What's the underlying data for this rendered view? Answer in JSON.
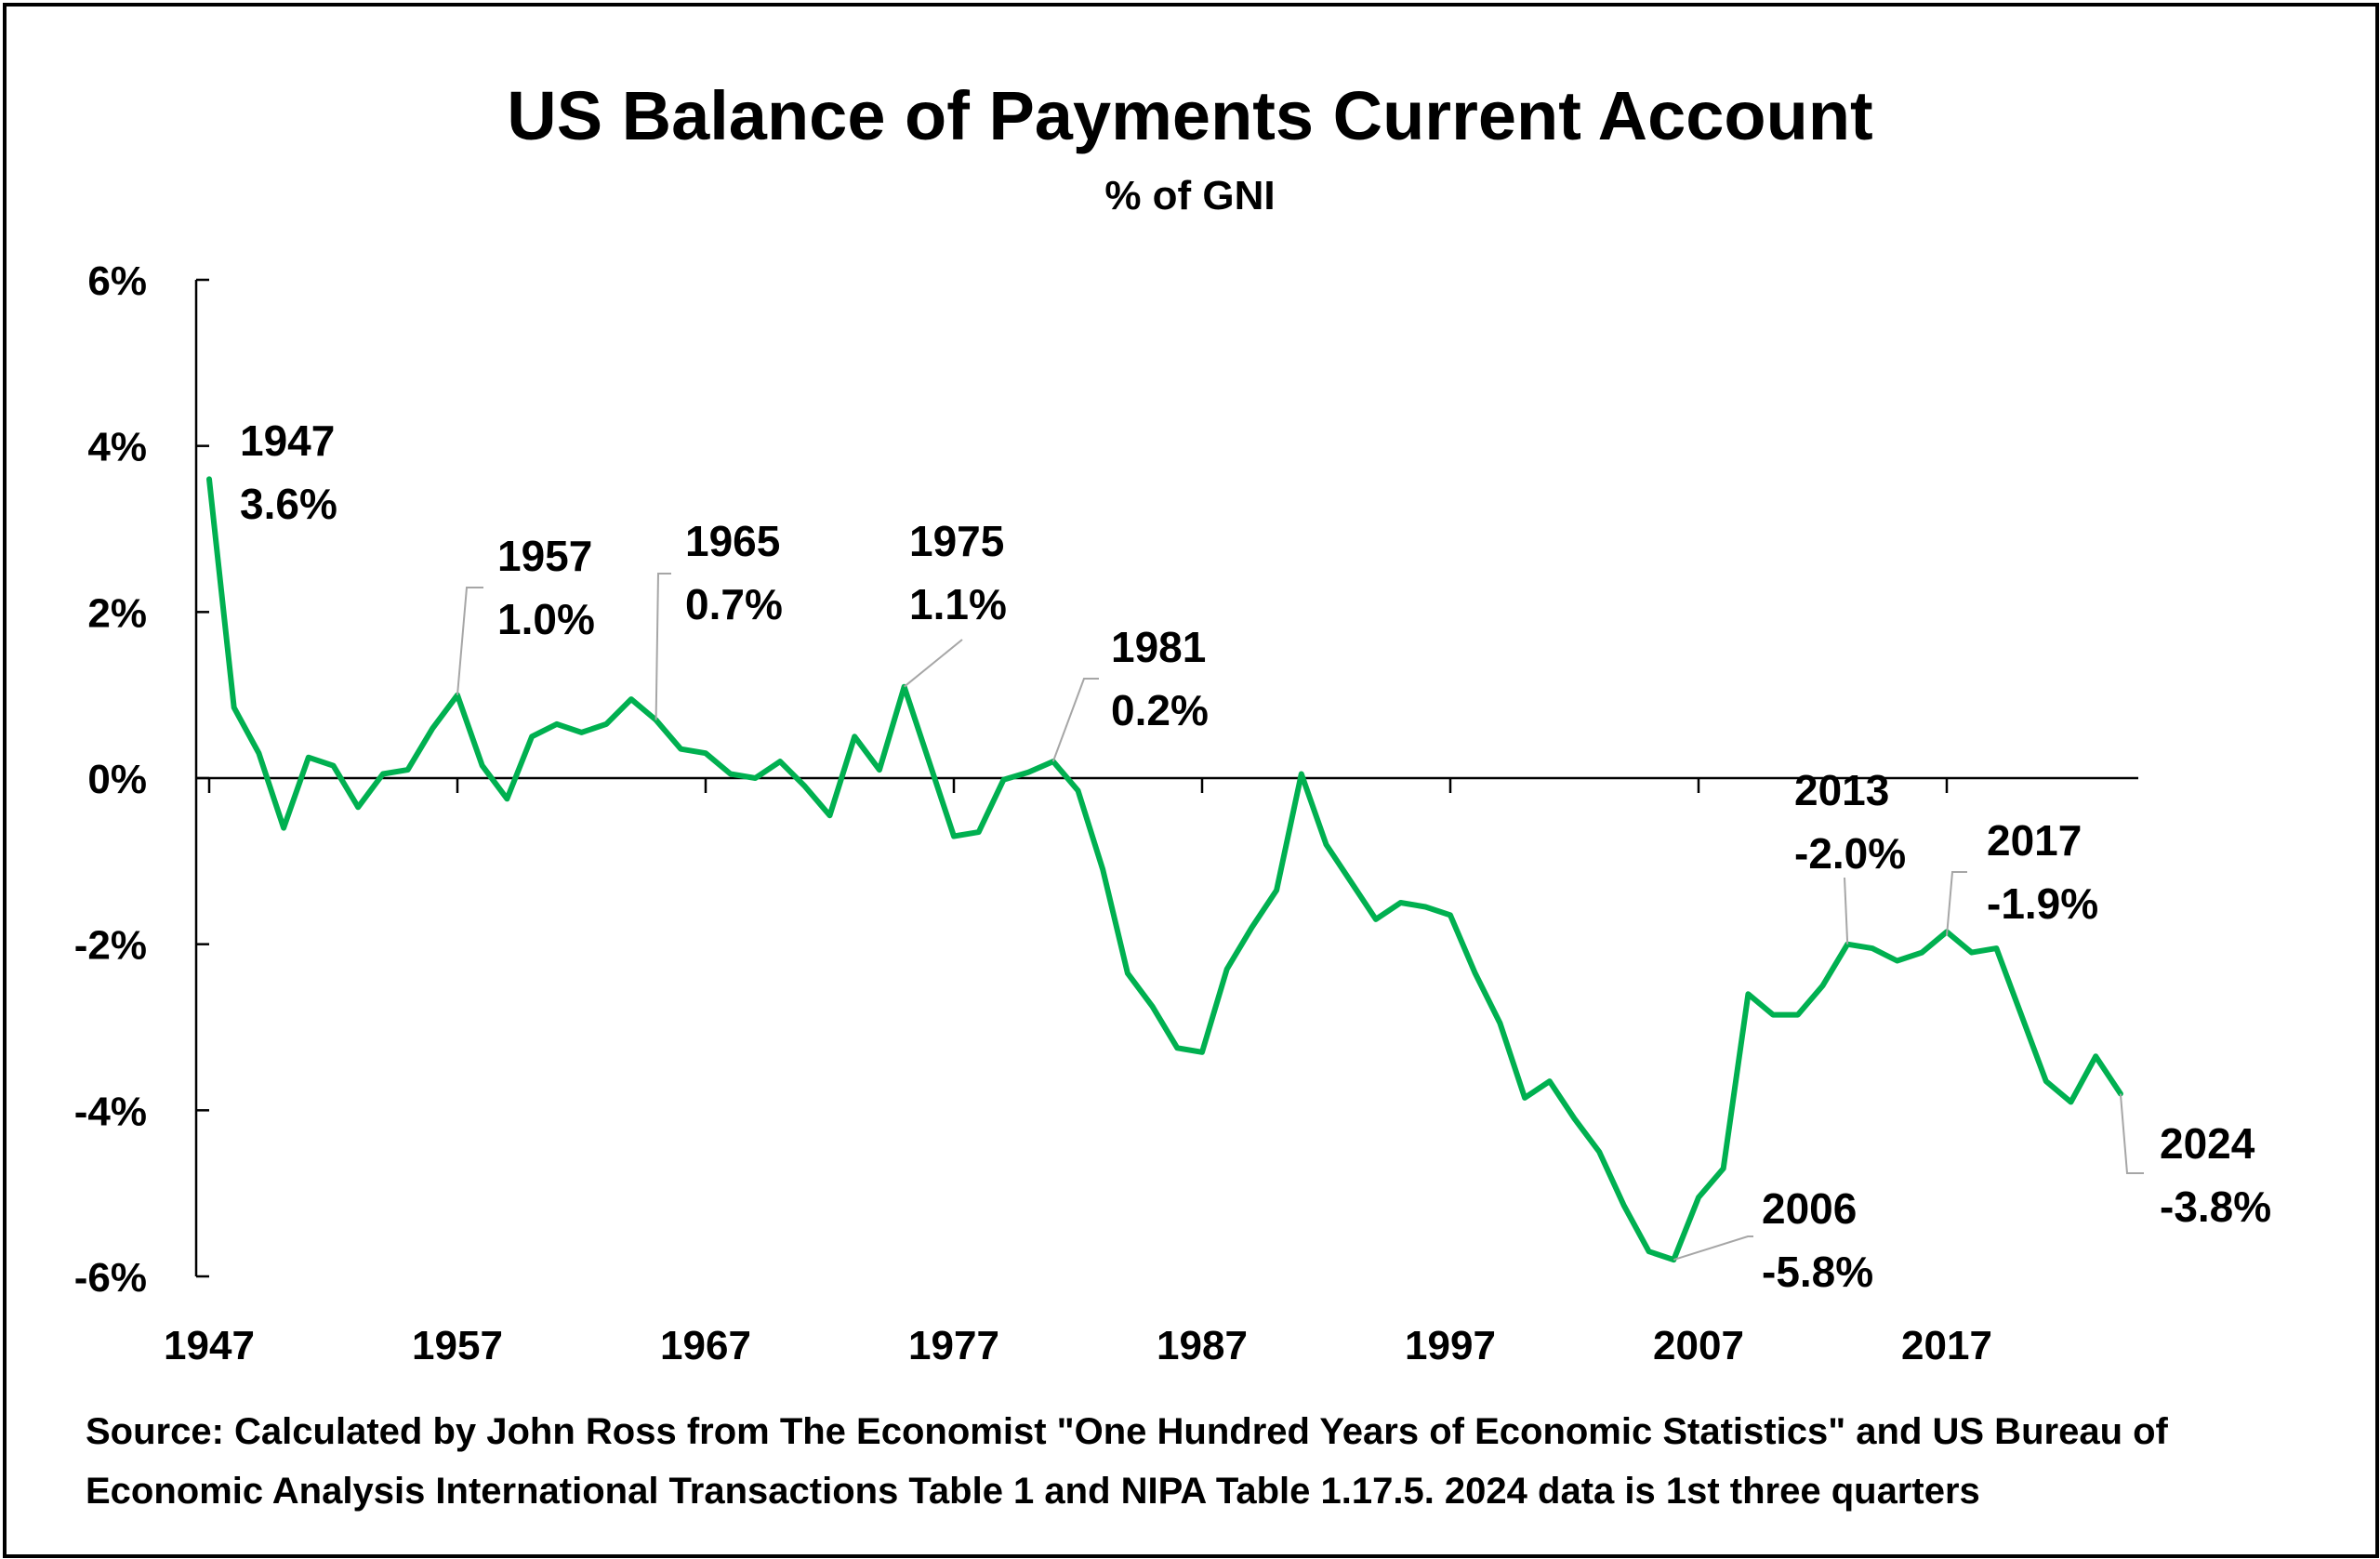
{
  "chart_data": {
    "type": "line",
    "title": "US Balance of Payments Current Account",
    "subtitle": "% of GNI",
    "xlabel": "",
    "ylabel": "",
    "xlim": [
      1947,
      2024
    ],
    "ylim": [
      -6,
      6
    ],
    "x_ticks": [
      1947,
      1957,
      1967,
      1977,
      1987,
      1997,
      2007,
      2017
    ],
    "y_ticks": [
      {
        "value": 6,
        "label": "6%"
      },
      {
        "value": 4,
        "label": "4%"
      },
      {
        "value": 2,
        "label": "2%"
      },
      {
        "value": 0,
        "label": "0%"
      },
      {
        "value": -2,
        "label": "-2%"
      },
      {
        "value": -4,
        "label": "-4%"
      },
      {
        "value": -6,
        "label": "-6%"
      }
    ],
    "grid": false,
    "line_color": "#00b050",
    "series": [
      {
        "x": [
          1947,
          1948,
          1949,
          1950,
          1951,
          1952,
          1953,
          1954,
          1955,
          1956,
          1957,
          1958,
          1959,
          1960,
          1961,
          1962,
          1963,
          1964,
          1965,
          1966,
          1967,
          1968,
          1969,
          1970,
          1971,
          1972,
          1973,
          1974,
          1975,
          1976,
          1977,
          1978,
          1979,
          1980,
          1981,
          1982,
          1983,
          1984,
          1985,
          1986,
          1987,
          1988,
          1989,
          1990,
          1991,
          1992,
          1993,
          1994,
          1995,
          1996,
          1997,
          1998,
          1999,
          2000,
          2001,
          2002,
          2003,
          2004,
          2005,
          2006,
          2007,
          2008,
          2009,
          2010,
          2011,
          2012,
          2013,
          2014,
          2015,
          2016,
          2017,
          2018,
          2019,
          2020,
          2021,
          2022,
          2023,
          2024
        ],
        "values": [
          3.6,
          0.85,
          0.3,
          -0.6,
          0.25,
          0.15,
          -0.35,
          0.05,
          0.1,
          0.6,
          1.0,
          0.15,
          -0.25,
          0.5,
          0.65,
          0.55,
          0.65,
          0.95,
          0.7,
          0.35,
          0.3,
          0.05,
          0.0,
          0.2,
          -0.1,
          -0.45,
          0.5,
          0.1,
          1.1,
          0.2,
          -0.7,
          -0.65,
          -0.02,
          0.07,
          0.2,
          -0.15,
          -1.1,
          -2.35,
          -2.75,
          -3.25,
          -3.3,
          -2.3,
          -1.8,
          -1.35,
          0.05,
          -0.8,
          -1.25,
          -1.7,
          -1.5,
          -1.55,
          -1.65,
          -2.35,
          -2.95,
          -3.85,
          -3.65,
          -4.1,
          -4.5,
          -5.15,
          -5.7,
          -5.8,
          -5.05,
          -4.7,
          -2.6,
          -2.85,
          -2.85,
          -2.5,
          -2.0,
          -2.05,
          -2.2,
          -2.1,
          -1.85,
          -2.1,
          -2.05,
          -2.85,
          -3.65,
          -3.9,
          -3.35,
          -3.8
        ]
      }
    ],
    "annotations": [
      {
        "year": "1947",
        "value": "3.6%"
      },
      {
        "year": "1957",
        "value": "1.0%"
      },
      {
        "year": "1965",
        "value": "0.7%"
      },
      {
        "year": "1975",
        "value": "1.1%"
      },
      {
        "year": "1981",
        "value": "0.2%"
      },
      {
        "year": "2006",
        "value": "-5.8%"
      },
      {
        "year": "2013",
        "value": "-2.0%"
      },
      {
        "year": "2017",
        "value": "-1.9%"
      },
      {
        "year": "2024",
        "value": "-3.8%"
      }
    ]
  },
  "source_note": "Source: Calculated by John Ross from The Economist \"One Hundred Years of Economic Statistics\" and US Bureau of Economic Analysis International Transactions Table 1 and NIPA Table 1.17.5. 2024 data is 1st three quarters"
}
